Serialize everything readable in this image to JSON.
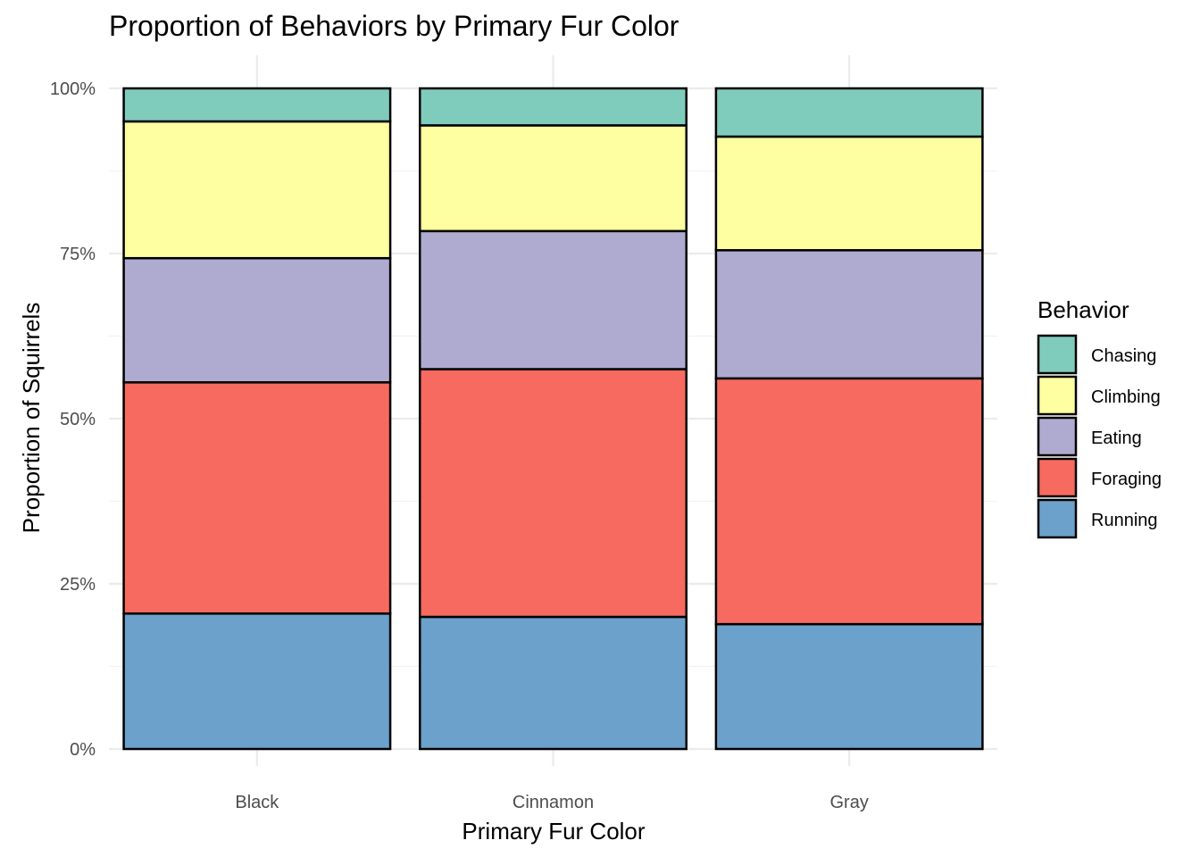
{
  "chart_data": {
    "type": "bar",
    "stacked": true,
    "normalized": true,
    "title": "Proportion of Behaviors by Primary Fur Color",
    "xlabel": "Primary Fur Color",
    "ylabel": "Proportion of Squirrels",
    "categories": [
      "Black",
      "Cinnamon",
      "Gray"
    ],
    "ylim": [
      0,
      1
    ],
    "yticks": [
      0,
      0.25,
      0.5,
      0.75,
      1
    ],
    "ytick_labels": [
      "0%",
      "25%",
      "50%",
      "75%",
      "100%"
    ],
    "grid": true,
    "legend": {
      "title": "Behavior",
      "placement": "right"
    },
    "series": [
      {
        "name": "Running",
        "color": "#6BA1CA",
        "values": [
          0.205,
          0.2,
          0.189
        ]
      },
      {
        "name": "Foraging",
        "color": "#F76A60",
        "values": [
          0.35,
          0.375,
          0.372
        ]
      },
      {
        "name": "Eating",
        "color": "#AFAAD0",
        "values": [
          0.188,
          0.209,
          0.194
        ]
      },
      {
        "name": "Climbing",
        "color": "#FEFFA0",
        "values": [
          0.207,
          0.16,
          0.172
        ]
      },
      {
        "name": "Chasing",
        "color": "#80CCBC",
        "values": [
          0.05,
          0.056,
          0.073
        ]
      }
    ],
    "legend_order": [
      "Chasing",
      "Climbing",
      "Eating",
      "Foraging",
      "Running"
    ]
  }
}
